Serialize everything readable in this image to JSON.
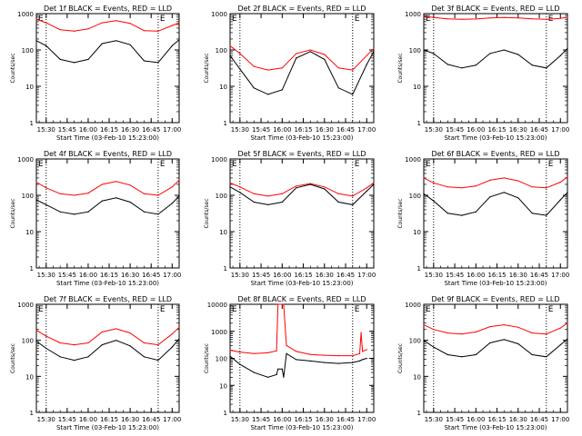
{
  "figure": {
    "ylabel": "Counts/sec",
    "xlabel": "Start Time (03-Feb-10 15:23:00)",
    "marker": "E",
    "colors": {
      "events": "#000000",
      "lld": "#ff0000",
      "axes": "#000000"
    }
  },
  "chart_data": [
    {
      "type": "line",
      "title": "Det 1f BLACK = Events, RED = LLD",
      "xticks": [
        "15:30",
        "15:45",
        "16:00",
        "16:15",
        "16:30",
        "16:45",
        "17:00"
      ],
      "x": [
        "15:23",
        "15:30",
        "15:40",
        "15:50",
        "16:00",
        "16:10",
        "16:20",
        "16:30",
        "16:40",
        "16:50",
        "17:00",
        "17:05"
      ],
      "xlim": [
        "15:23",
        "17:05"
      ],
      "ylim": [
        1,
        1000
      ],
      "yscale": "log",
      "yticks": [
        1,
        10,
        100,
        1000
      ],
      "vlines": [
        "15:30",
        "16:50"
      ],
      "series": [
        {
          "name": "LLD",
          "values": [
            700,
            560,
            360,
            330,
            380,
            560,
            640,
            540,
            340,
            330,
            470,
            560
          ]
        },
        {
          "name": "Events",
          "values": [
            180,
            130,
            55,
            45,
            55,
            150,
            180,
            140,
            50,
            45,
            130,
            190
          ]
        }
      ]
    },
    {
      "type": "line",
      "title": "Det 2f BLACK = Events, RED = LLD",
      "xticks": [
        "15:30",
        "15:45",
        "16:00",
        "16:15",
        "16:30",
        "16:45",
        "17:00"
      ],
      "x": [
        "15:23",
        "15:30",
        "15:40",
        "15:50",
        "16:00",
        "16:10",
        "16:20",
        "16:30",
        "16:40",
        "16:50",
        "17:00",
        "17:05"
      ],
      "xlim": [
        "15:23",
        "17:05"
      ],
      "ylim": [
        1,
        1000
      ],
      "yscale": "log",
      "yticks": [
        1,
        10,
        100,
        1000
      ],
      "vlines": [
        "15:30",
        "16:50"
      ],
      "series": [
        {
          "name": "LLD",
          "values": [
            130,
            80,
            35,
            28,
            32,
            80,
            100,
            75,
            32,
            28,
            70,
            110
          ]
        },
        {
          "name": "Events",
          "values": [
            70,
            30,
            9,
            6,
            8,
            60,
            90,
            55,
            9,
            6,
            40,
            90
          ]
        }
      ]
    },
    {
      "type": "line",
      "title": "Det 3f BLACK = Events, RED = LLD",
      "xticks": [
        "15:30",
        "15:45",
        "16:00",
        "16:15",
        "16:30",
        "16:45",
        "17:00"
      ],
      "x": [
        "15:23",
        "15:30",
        "15:40",
        "15:50",
        "16:00",
        "16:10",
        "16:20",
        "16:30",
        "16:40",
        "16:50",
        "17:00",
        "17:05"
      ],
      "xlim": [
        "15:23",
        "17:05"
      ],
      "ylim": [
        1,
        1000
      ],
      "yscale": "log",
      "yticks": [
        1,
        10,
        100,
        1000
      ],
      "vlines": [
        "15:30",
        "16:50"
      ],
      "series": [
        {
          "name": "LLD",
          "values": [
            850,
            780,
            720,
            700,
            710,
            760,
            780,
            760,
            720,
            700,
            740,
            800
          ]
        },
        {
          "name": "Events",
          "values": [
            100,
            80,
            40,
            32,
            38,
            80,
            100,
            75,
            38,
            32,
            70,
            110
          ]
        }
      ]
    },
    {
      "type": "line",
      "title": "Det 4f BLACK = Events, RED = LLD",
      "xticks": [
        "15:30",
        "15:45",
        "16:00",
        "16:15",
        "16:30",
        "16:45",
        "17:00"
      ],
      "x": [
        "15:23",
        "15:30",
        "15:40",
        "15:50",
        "16:00",
        "16:10",
        "16:20",
        "16:30",
        "16:40",
        "16:50",
        "17:00",
        "17:05"
      ],
      "xlim": [
        "15:23",
        "17:05"
      ],
      "ylim": [
        1,
        1000
      ],
      "yscale": "log",
      "yticks": [
        1,
        10,
        100,
        1000
      ],
      "vlines": [
        "15:30",
        "16:50"
      ],
      "series": [
        {
          "name": "LLD",
          "values": [
            230,
            160,
            110,
            100,
            115,
            200,
            240,
            190,
            110,
            100,
            170,
            260
          ]
        },
        {
          "name": "Events",
          "values": [
            75,
            55,
            35,
            30,
            35,
            70,
            85,
            65,
            35,
            30,
            60,
            95
          ]
        }
      ]
    },
    {
      "type": "line",
      "title": "Det 5f BLACK = Events, RED = LLD",
      "xticks": [
        "15:30",
        "15:45",
        "16:00",
        "16:15",
        "16:30",
        "16:45",
        "17:00"
      ],
      "x": [
        "15:23",
        "15:30",
        "15:40",
        "15:50",
        "16:00",
        "16:10",
        "16:20",
        "16:30",
        "16:40",
        "16:50",
        "17:00",
        "17:05"
      ],
      "xlim": [
        "15:23",
        "17:05"
      ],
      "ylim": [
        1,
        1000
      ],
      "yscale": "log",
      "yticks": [
        1,
        10,
        100,
        1000
      ],
      "vlines": [
        "15:30",
        "16:50"
      ],
      "series": [
        {
          "name": "LLD",
          "values": [
            220,
            170,
            110,
            95,
            110,
            180,
            210,
            170,
            110,
            95,
            160,
            220
          ]
        },
        {
          "name": "Events",
          "values": [
            170,
            120,
            65,
            55,
            65,
            160,
            200,
            150,
            65,
            55,
            130,
            200
          ]
        }
      ]
    },
    {
      "type": "line",
      "title": "Det 6f BLACK = Events, RED = LLD",
      "xticks": [
        "15:30",
        "15:45",
        "16:00",
        "16:15",
        "16:30",
        "16:45",
        "17:00"
      ],
      "x": [
        "15:23",
        "15:30",
        "15:40",
        "15:50",
        "16:00",
        "16:10",
        "16:20",
        "16:30",
        "16:40",
        "16:50",
        "17:00",
        "17:05"
      ],
      "xlim": [
        "15:23",
        "17:05"
      ],
      "ylim": [
        1,
        1000
      ],
      "yscale": "log",
      "yticks": [
        1,
        10,
        100,
        1000
      ],
      "vlines": [
        "15:30",
        "16:50"
      ],
      "series": [
        {
          "name": "LLD",
          "values": [
            300,
            220,
            170,
            160,
            180,
            260,
            300,
            250,
            170,
            160,
            230,
            320
          ]
        },
        {
          "name": "Events",
          "values": [
            110,
            70,
            32,
            28,
            35,
            90,
            120,
            85,
            32,
            28,
            75,
            120
          ]
        }
      ]
    },
    {
      "type": "line",
      "title": "Det 7f BLACK = Events, RED = LLD",
      "xticks": [
        "15:30",
        "15:45",
        "16:00",
        "16:15",
        "16:30",
        "16:45",
        "17:00"
      ],
      "x": [
        "15:23",
        "15:30",
        "15:40",
        "15:50",
        "16:00",
        "16:10",
        "16:20",
        "16:30",
        "16:40",
        "16:50",
        "17:00",
        "17:05"
      ],
      "xlim": [
        "15:23",
        "17:05"
      ],
      "ylim": [
        1,
        1000
      ],
      "yscale": "log",
      "yticks": [
        1,
        10,
        100,
        1000
      ],
      "vlines": [
        "15:30",
        "16:50"
      ],
      "series": [
        {
          "name": "LLD",
          "values": [
            190,
            130,
            85,
            75,
            85,
            170,
            210,
            160,
            85,
            75,
            150,
            230
          ]
        },
        {
          "name": "Events",
          "values": [
            95,
            60,
            35,
            28,
            35,
            75,
            100,
            70,
            35,
            28,
            65,
            110
          ]
        }
      ]
    },
    {
      "type": "line",
      "title": "Det 8f BLACK = Events, RED = LLD",
      "xticks": [
        "15:30",
        "15:45",
        "16:00",
        "16:15",
        "16:30",
        "16:45",
        "17:00"
      ],
      "x": [
        "15:23",
        "15:30",
        "15:40",
        "15:50",
        "15:56",
        "15:57",
        "16:00",
        "16:01",
        "16:03",
        "16:10",
        "16:20",
        "16:30",
        "16:40",
        "16:50",
        "16:55",
        "16:56",
        "16:57",
        "17:00"
      ],
      "xlim": [
        "15:23",
        "17:05"
      ],
      "ylim": [
        1,
        10000
      ],
      "yscale": "log",
      "yticks": [
        1,
        10,
        100,
        1000,
        10000
      ],
      "vlines": [
        "15:30",
        "16:50"
      ],
      "series": [
        {
          "name": "LLD",
          "values": [
            200,
            170,
            150,
            160,
            190,
            12000,
            12000,
            12000,
            300,
            180,
            140,
            130,
            125,
            125,
            150,
            900,
            180,
            210
          ]
        },
        {
          "name": "Events",
          "values": [
            120,
            60,
            30,
            20,
            25,
            40,
            40,
            20,
            150,
            90,
            80,
            70,
            65,
            70,
            80,
            85,
            90,
            100
          ]
        }
      ]
    },
    {
      "type": "line",
      "title": "Det 9f BLACK = Events, RED = LLD",
      "xticks": [
        "15:30",
        "15:45",
        "16:00",
        "16:15",
        "16:30",
        "16:45",
        "17:00"
      ],
      "x": [
        "15:23",
        "15:30",
        "15:40",
        "15:50",
        "16:00",
        "16:10",
        "16:20",
        "16:30",
        "16:40",
        "16:50",
        "17:00",
        "17:05"
      ],
      "xlim": [
        "15:23",
        "17:05"
      ],
      "ylim": [
        1,
        1000
      ],
      "yscale": "log",
      "yticks": [
        1,
        10,
        100,
        1000
      ],
      "vlines": [
        "15:30",
        "16:50"
      ],
      "series": [
        {
          "name": "LLD",
          "values": [
            270,
            200,
            160,
            150,
            170,
            240,
            270,
            230,
            160,
            150,
            220,
            300
          ]
        },
        {
          "name": "Events",
          "values": [
            100,
            65,
            40,
            35,
            40,
            85,
            105,
            80,
            40,
            35,
            75,
            110
          ]
        }
      ]
    }
  ]
}
